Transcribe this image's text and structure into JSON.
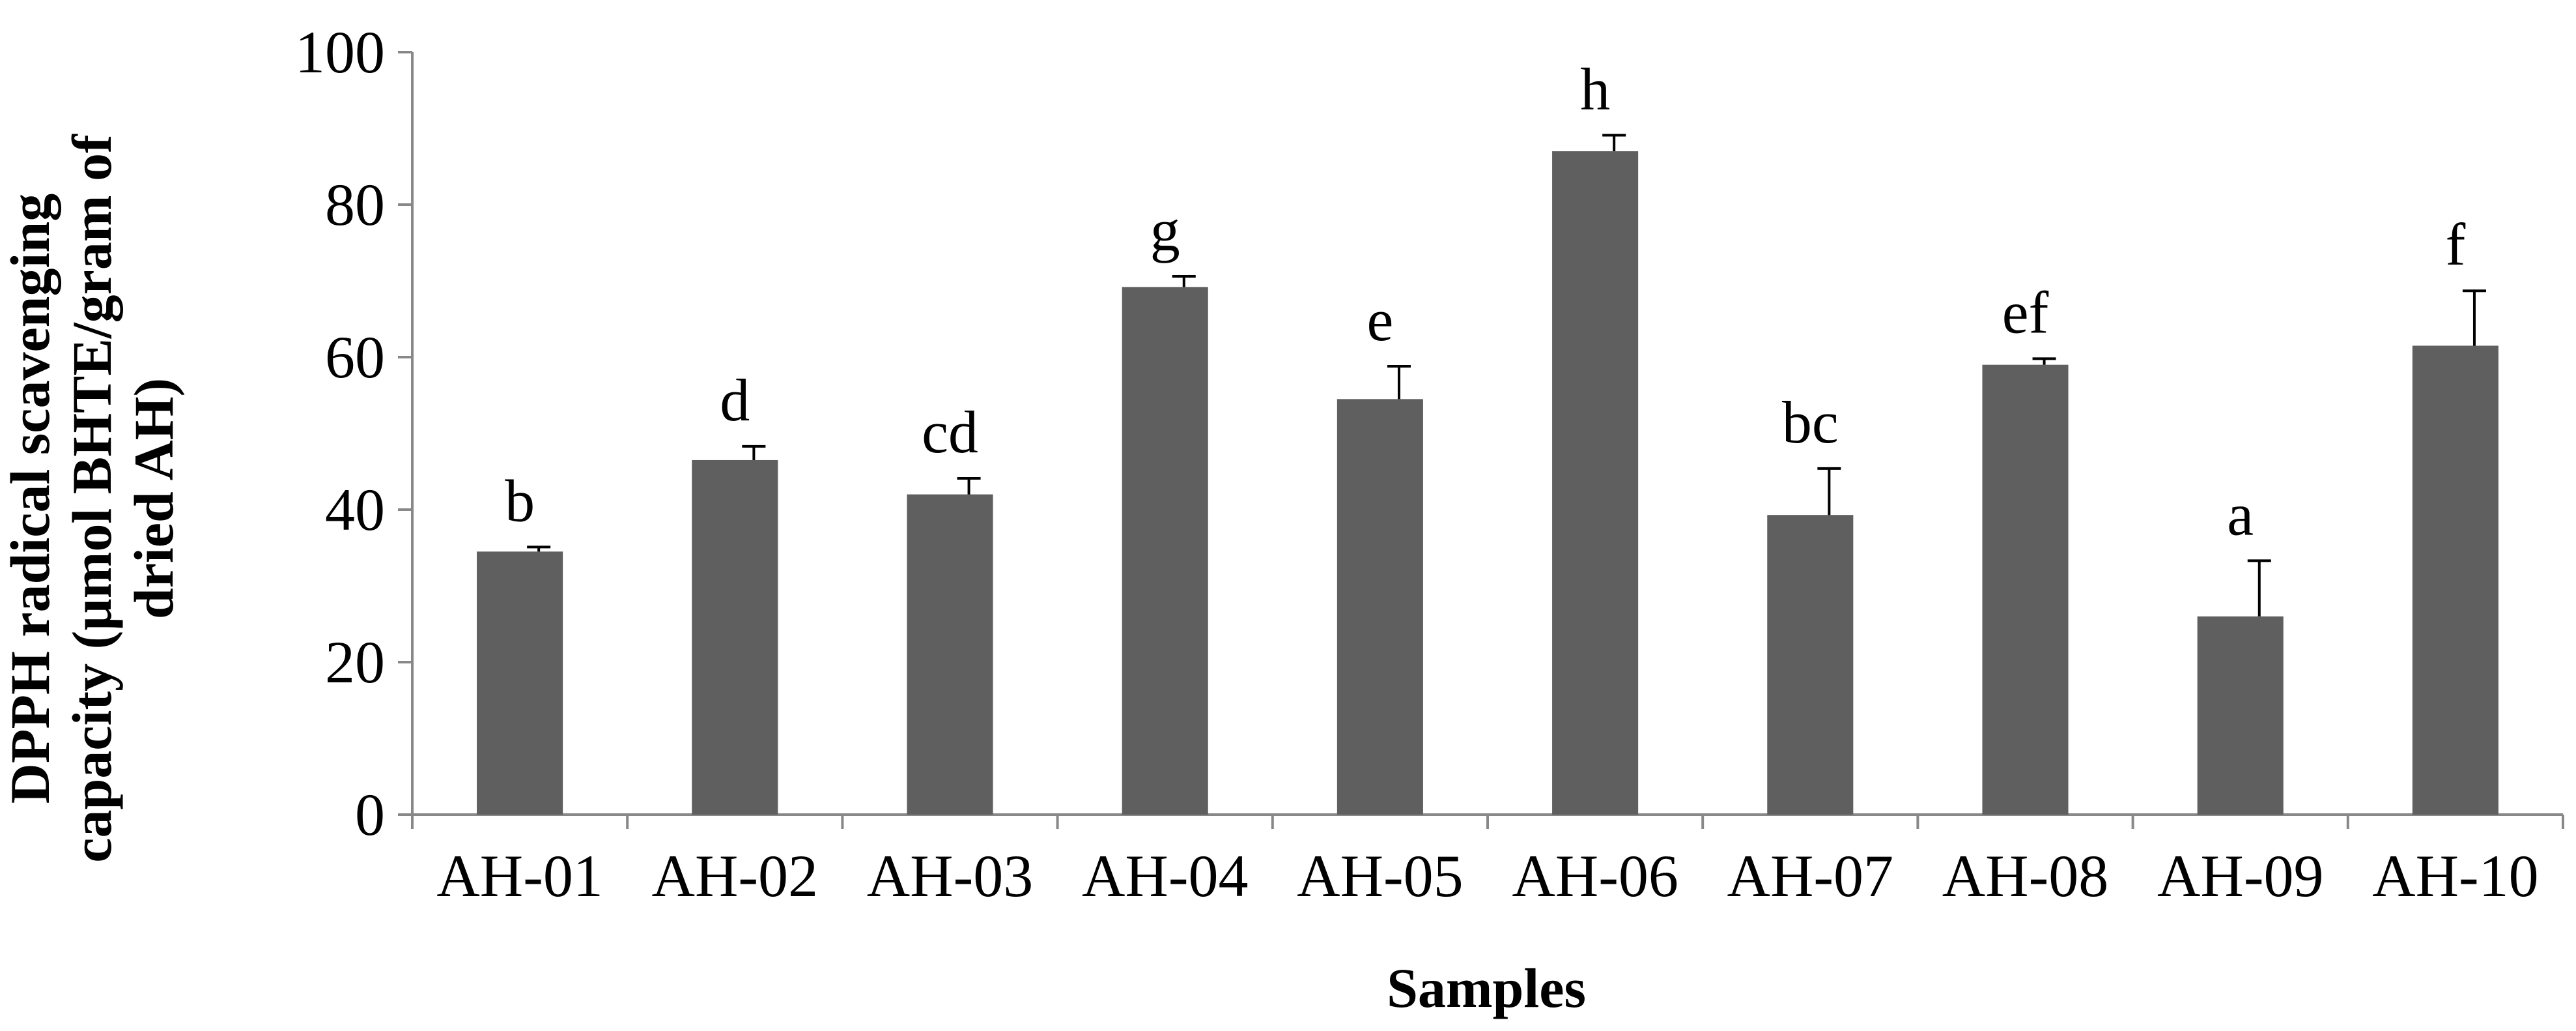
{
  "chart_data": {
    "type": "bar",
    "title": "",
    "xlabel": "Samples",
    "ylabel_lines": [
      "DPPH radical scavenging",
      "capacity (µmol BHTE/gram of",
      "dried AH)"
    ],
    "ylim": [
      0,
      100
    ],
    "yticks": [
      "0",
      "20",
      "40",
      "60",
      "80",
      "100"
    ],
    "ytick_values": [
      0,
      20,
      40,
      60,
      80,
      100
    ],
    "categories": [
      "AH-01",
      "AH-02",
      "AH-03",
      "AH-04",
      "AH-05",
      "AH-06",
      "AH-07",
      "AH-08",
      "AH-09",
      "AH-10"
    ],
    "values": [
      34.5,
      46.5,
      42,
      69.2,
      54.5,
      87,
      39.3,
      59,
      26,
      61.5
    ],
    "errors": [
      0.6,
      1.8,
      2.1,
      1.4,
      4.3,
      2.1,
      6.1,
      0.8,
      7.3,
      7.2
    ],
    "significance_letters": [
      "b",
      "d",
      "cd",
      "g",
      "e",
      "h",
      "bc",
      "ef",
      "a",
      "f"
    ],
    "grid": false,
    "legend": "none",
    "bar_color": "#5f5f5f",
    "axis_color": "#888888"
  }
}
